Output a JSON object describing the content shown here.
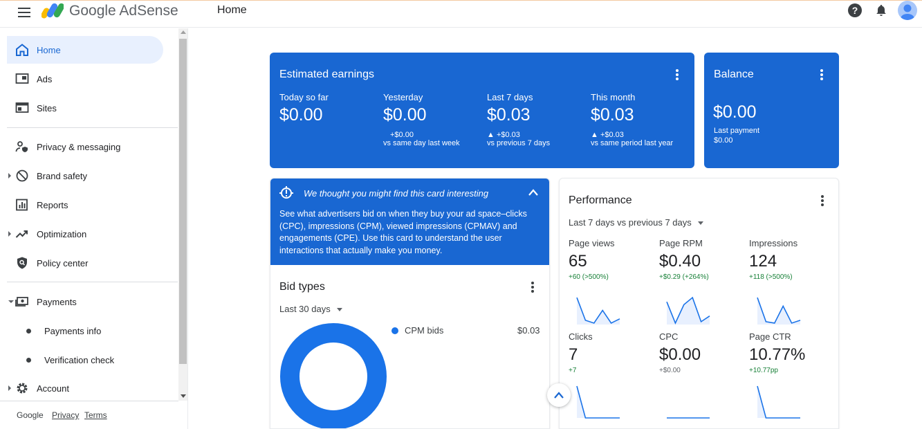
{
  "header": {
    "brand": "Google AdSense",
    "page_title": "Home"
  },
  "sidebar": {
    "items": [
      {
        "label": "Home"
      },
      {
        "label": "Ads"
      },
      {
        "label": "Sites"
      },
      {
        "label": "Privacy & messaging"
      },
      {
        "label": "Brand safety"
      },
      {
        "label": "Reports"
      },
      {
        "label": "Optimization"
      },
      {
        "label": "Policy center"
      },
      {
        "label": "Payments"
      },
      {
        "label": "Payments info"
      },
      {
        "label": "Verification check"
      },
      {
        "label": "Account"
      }
    ],
    "footer": {
      "google": "Google",
      "privacy": "Privacy",
      "terms": "Terms"
    }
  },
  "earnings": {
    "title": "Estimated earnings",
    "stats": [
      {
        "label": "Today so far",
        "value": "$0.00",
        "delta": "",
        "compare": ""
      },
      {
        "label": "Yesterday",
        "value": "$0.00",
        "delta": "+$0.00",
        "compare": "vs same day last week"
      },
      {
        "label": "Last 7 days",
        "value": "$0.03",
        "delta": "▲ +$0.03",
        "compare": "vs previous 7 days"
      },
      {
        "label": "This month",
        "value": "$0.03",
        "delta": "▲ +$0.03",
        "compare": "vs same period last year"
      }
    ]
  },
  "balance": {
    "title": "Balance",
    "value": "$0.00",
    "last_payment_label": "Last payment",
    "last_payment_value": "$0.00"
  },
  "insight": {
    "title": "We thought you might find this card interesting",
    "body": "See what advertisers bid on when they buy your ad space–clicks (CPC), impressions (CPM), viewed impressions (CPMAV) and engagements (CPE). Use this card to understand the user interactions that actually make you money."
  },
  "bid_types": {
    "title": "Bid types",
    "range": "Last 30 days",
    "legend": [
      {
        "label": "CPM bids",
        "value": "$0.03",
        "color": "#1a73e8"
      }
    ]
  },
  "performance": {
    "title": "Performance",
    "range": "Last 7 days vs previous 7 days",
    "metrics": [
      {
        "label": "Page views",
        "value": "65",
        "change": "+60 (>500%)",
        "spark": [
          0.95,
          0.15,
          0.05,
          0.5,
          0.05,
          0.2
        ]
      },
      {
        "label": "Page RPM",
        "value": "$0.40",
        "change": "+$0.29 (+264%)",
        "spark": [
          0.8,
          0.05,
          0.7,
          0.95,
          0.1,
          0.3
        ]
      },
      {
        "label": "Impressions",
        "value": "124",
        "change": "+118 (>500%)",
        "spark": [
          0.95,
          0.1,
          0.05,
          0.65,
          0.05,
          0.15
        ]
      },
      {
        "label": "Clicks",
        "value": "7",
        "change": "+7",
        "spark": [
          1,
          0,
          0,
          0,
          0,
          0
        ]
      },
      {
        "label": "CPC",
        "value": "$0.00",
        "change": "+$0.00",
        "spark": [
          0,
          0,
          0,
          0,
          0,
          0
        ]
      },
      {
        "label": "Page CTR",
        "value": "10.77%",
        "change": "+10.77pp",
        "spark": [
          1,
          0,
          0,
          0,
          0,
          0
        ]
      }
    ]
  }
}
